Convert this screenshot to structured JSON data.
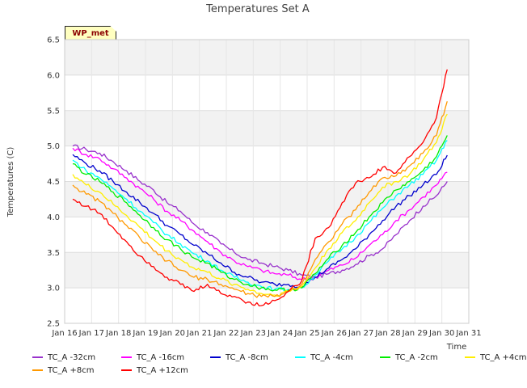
{
  "chart_data": {
    "type": "line",
    "title": "Temperatures Set A",
    "xlabel": "Time",
    "ylabel": "Temperatures (C)",
    "badge": "WP_met",
    "x_ticks": [
      "Jan 16",
      "Jan 17",
      "Jan 18",
      "Jan 19",
      "Jan 20",
      "Jan 21",
      "Jan 22",
      "Jan 23",
      "Jan 24",
      "Jan 25",
      "Jan 26",
      "Jan 27",
      "Jan 28",
      "Jan 29",
      "Jan 30",
      "Jan 31"
    ],
    "y_ticks": [
      "2.5",
      "3.0",
      "3.5",
      "4.0",
      "4.5",
      "5.0",
      "5.5",
      "6.0",
      "6.5"
    ],
    "xlim": [
      16,
      31
    ],
    "ylim": [
      2.5,
      6.5
    ],
    "x": [
      16.3,
      16.8,
      17.3,
      17.8,
      18.3,
      18.8,
      19.3,
      19.8,
      20.3,
      20.8,
      21.3,
      21.8,
      22.3,
      22.8,
      23.3,
      23.8,
      24.3,
      24.8,
      25.3,
      25.8,
      26.3,
      26.8,
      27.3,
      27.8,
      28.3,
      28.8,
      29.3,
      29.8,
      30.2
    ],
    "series": [
      {
        "name": "TC_A -32cm",
        "color": "#9932cc",
        "values": [
          5.0,
          4.95,
          4.9,
          4.78,
          4.65,
          4.5,
          4.38,
          4.2,
          4.08,
          3.9,
          3.78,
          3.62,
          3.5,
          3.4,
          3.35,
          3.3,
          3.25,
          3.18,
          3.15,
          3.2,
          3.25,
          3.33,
          3.45,
          3.55,
          3.75,
          3.95,
          4.15,
          4.3,
          4.5
        ]
      },
      {
        "name": "TC_A -16cm",
        "color": "#ff00ff",
        "values": [
          4.97,
          4.88,
          4.82,
          4.68,
          4.55,
          4.4,
          4.25,
          4.08,
          3.95,
          3.8,
          3.65,
          3.5,
          3.38,
          3.3,
          3.25,
          3.2,
          3.18,
          3.12,
          3.15,
          3.25,
          3.32,
          3.42,
          3.6,
          3.75,
          3.95,
          4.1,
          4.28,
          4.45,
          4.63
        ]
      },
      {
        "name": "TC_A -8cm",
        "color": "#0000cd",
        "values": [
          4.88,
          4.75,
          4.65,
          4.5,
          4.35,
          4.2,
          4.05,
          3.88,
          3.75,
          3.6,
          3.48,
          3.35,
          3.22,
          3.15,
          3.08,
          3.05,
          3.05,
          3.02,
          3.15,
          3.28,
          3.4,
          3.55,
          3.75,
          3.95,
          4.15,
          4.3,
          4.45,
          4.6,
          4.87
        ]
      },
      {
        "name": "TC_A -4cm",
        "color": "#00ffff",
        "values": [
          4.8,
          4.65,
          4.55,
          4.4,
          4.25,
          4.08,
          3.92,
          3.75,
          3.62,
          3.48,
          3.38,
          3.25,
          3.15,
          3.08,
          3.02,
          2.98,
          2.98,
          3.0,
          3.18,
          3.38,
          3.55,
          3.72,
          3.92,
          4.12,
          4.3,
          4.45,
          4.6,
          4.8,
          5.08
        ]
      },
      {
        "name": "TC_A -2cm",
        "color": "#00ee00",
        "values": [
          4.75,
          4.6,
          4.5,
          4.35,
          4.2,
          4.02,
          3.85,
          3.68,
          3.55,
          3.42,
          3.35,
          3.22,
          3.12,
          3.05,
          3.0,
          2.97,
          2.97,
          3.0,
          3.2,
          3.42,
          3.6,
          3.78,
          4.0,
          4.2,
          4.38,
          4.5,
          4.65,
          4.85,
          5.15
        ]
      },
      {
        "name": "TC_A +4cm",
        "color": "#ffee00",
        "values": [
          4.6,
          4.45,
          4.35,
          4.18,
          4.02,
          3.85,
          3.68,
          3.52,
          3.4,
          3.28,
          3.22,
          3.12,
          3.05,
          2.98,
          2.92,
          2.9,
          2.95,
          3.02,
          3.28,
          3.55,
          3.78,
          3.95,
          4.2,
          4.42,
          4.5,
          4.6,
          4.8,
          5.05,
          5.45
        ]
      },
      {
        "name": "TC_A +8cm",
        "color": "#ff9900",
        "values": [
          4.45,
          4.32,
          4.22,
          4.05,
          3.88,
          3.7,
          3.52,
          3.38,
          3.25,
          3.15,
          3.12,
          3.05,
          2.98,
          2.92,
          2.88,
          2.88,
          2.95,
          3.05,
          3.4,
          3.65,
          3.9,
          4.1,
          4.35,
          4.55,
          4.58,
          4.72,
          4.9,
          5.15,
          5.63
        ]
      },
      {
        "name": "TC_A +12cm",
        "color": "#ff0000",
        "values": [
          4.25,
          4.15,
          4.05,
          3.85,
          3.65,
          3.45,
          3.3,
          3.15,
          3.05,
          2.95,
          3.05,
          2.92,
          2.88,
          2.8,
          2.75,
          2.82,
          2.95,
          3.1,
          3.7,
          3.85,
          4.2,
          4.48,
          4.55,
          4.7,
          4.62,
          4.85,
          5.05,
          5.4,
          6.08
        ]
      }
    ],
    "grid": true,
    "legend_position": "bottom"
  }
}
